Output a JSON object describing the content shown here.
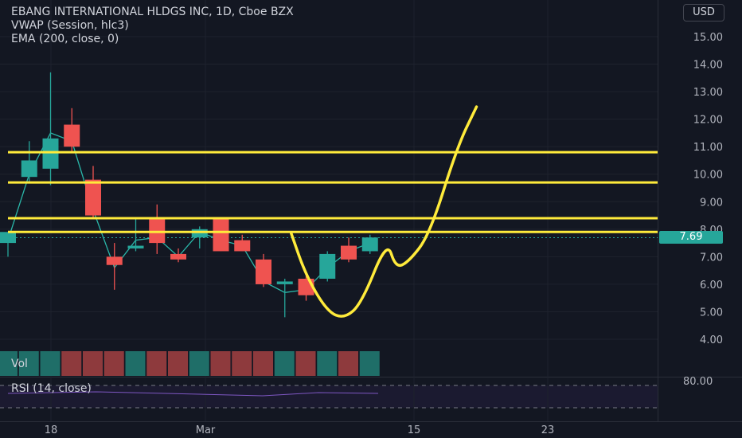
{
  "header": {
    "title": "EBANG INTERNATIONAL HLDGS INC, 1D, Cboe BZX",
    "indicator_vwap": "VWAP (Session, hlc3)",
    "indicator_ema": "EMA (200, close, 0)",
    "currency": "USD"
  },
  "volume_pane": {
    "label": "Vol"
  },
  "rsi_pane": {
    "label": "RSI (14, close)",
    "level_label": "80.00"
  },
  "last_price": "7.69",
  "colors": {
    "background": "#131722",
    "up": "#26a69a",
    "down": "#ef5350",
    "drawing": "#ffeb3b",
    "vwap": "#2ab7a9",
    "rsi": "#7e57c2"
  },
  "chart_data": {
    "type": "candlestick",
    "price_axis_ticks": [
      "15.00",
      "14.00",
      "13.00",
      "12.00",
      "11.00",
      "10.00",
      "9.00",
      "8.00",
      "7.00",
      "6.00",
      "5.00",
      "4.00"
    ],
    "time_axis_ticks": [
      "18",
      "Mar",
      "15",
      "23"
    ],
    "candles": [
      {
        "o": 7.5,
        "h": 7.9,
        "l": 7.0,
        "c": 7.9
      },
      {
        "o": 9.9,
        "h": 11.2,
        "l": 9.7,
        "c": 10.5
      },
      {
        "o": 10.2,
        "h": 13.7,
        "l": 9.6,
        "c": 11.3
      },
      {
        "o": 11.8,
        "h": 12.4,
        "l": 10.8,
        "c": 11.0
      },
      {
        "o": 9.8,
        "h": 10.3,
        "l": 8.4,
        "c": 8.5
      },
      {
        "o": 7.0,
        "h": 7.5,
        "l": 5.8,
        "c": 6.7
      },
      {
        "o": 7.3,
        "h": 8.4,
        "l": 7.2,
        "c": 7.4
      },
      {
        "o": 8.4,
        "h": 8.9,
        "l": 7.1,
        "c": 7.5
      },
      {
        "o": 7.1,
        "h": 7.3,
        "l": 6.8,
        "c": 6.9
      },
      {
        "o": 7.7,
        "h": 8.1,
        "l": 7.3,
        "c": 8.0
      },
      {
        "o": 8.4,
        "h": 8.4,
        "l": 7.2,
        "c": 7.2
      },
      {
        "o": 7.6,
        "h": 7.8,
        "l": 7.2,
        "c": 7.2
      },
      {
        "o": 6.9,
        "h": 7.1,
        "l": 5.9,
        "c": 6.0
      },
      {
        "o": 6.0,
        "h": 6.2,
        "l": 4.8,
        "c": 6.1
      },
      {
        "o": 6.2,
        "h": 6.3,
        "l": 5.4,
        "c": 5.6
      },
      {
        "o": 6.2,
        "h": 7.2,
        "l": 6.1,
        "c": 7.1
      },
      {
        "o": 7.4,
        "h": 7.7,
        "l": 6.8,
        "c": 6.9
      },
      {
        "o": 7.2,
        "h": 7.8,
        "l": 7.1,
        "c": 7.7
      }
    ],
    "vwap": [
      7.6,
      10.0,
      11.5,
      11.2,
      8.7,
      6.6,
      7.6,
      7.7,
      7.0,
      7.9,
      7.6,
      7.4,
      6.1,
      5.7,
      5.8,
      6.6,
      7.2,
      7.5
    ],
    "volume_colors": [
      "up",
      "up",
      "up",
      "down",
      "down",
      "down",
      "up",
      "down",
      "down",
      "up",
      "down",
      "down",
      "down",
      "up",
      "down",
      "up",
      "down",
      "up"
    ],
    "horizontal_levels": [
      10.8,
      9.7,
      8.4,
      7.9
    ],
    "drawn_path": [
      {
        "x": 13.3,
        "y": 7.85
      },
      {
        "x": 14.0,
        "y": 6.3
      },
      {
        "x": 15.0,
        "y": 5.0
      },
      {
        "x": 15.8,
        "y": 4.75
      },
      {
        "x": 16.6,
        "y": 5.3
      },
      {
        "x": 17.8,
        "y": 7.6
      },
      {
        "x": 18.2,
        "y": 6.6
      },
      {
        "x": 18.8,
        "y": 6.8
      },
      {
        "x": 19.8,
        "y": 7.8
      },
      {
        "x": 21.1,
        "y": 11.0
      },
      {
        "x": 22.0,
        "y": 12.45
      }
    ]
  }
}
